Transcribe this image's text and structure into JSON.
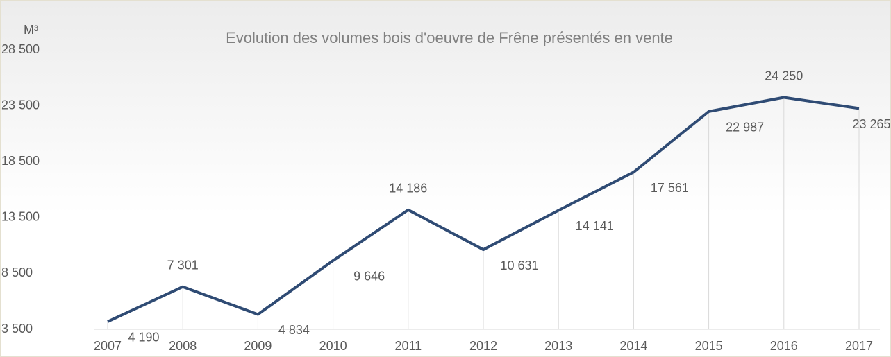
{
  "chart_data": {
    "type": "line",
    "title": "Evolution des volumes bois d'oeuvre de Frêne présentés en vente",
    "y_label": "M³",
    "categories": [
      "2007",
      "2008",
      "2009",
      "2010",
      "2011",
      "2012",
      "2013",
      "2014",
      "2015",
      "2016",
      "2017"
    ],
    "values": [
      4190,
      7301,
      4834,
      9646,
      14186,
      10631,
      14141,
      17561,
      22987,
      24250,
      23265
    ],
    "value_labels": [
      "4 190",
      "7 301",
      "4 834",
      "9 646",
      "14 186",
      "10 631",
      "14 141",
      "17 561",
      "22 987",
      "24 250",
      "23 265"
    ],
    "color": "#2f4b74",
    "ylim": [
      3500,
      28500
    ],
    "yticks": [
      {
        "value": 3500,
        "label": "3 500"
      },
      {
        "value": 8500,
        "label": "8 500"
      },
      {
        "value": 13500,
        "label": "13 500"
      },
      {
        "value": 18500,
        "label": "18 500"
      },
      {
        "value": 23500,
        "label": "23 500"
      },
      {
        "value": 28500,
        "label": "28 500"
      }
    ]
  }
}
